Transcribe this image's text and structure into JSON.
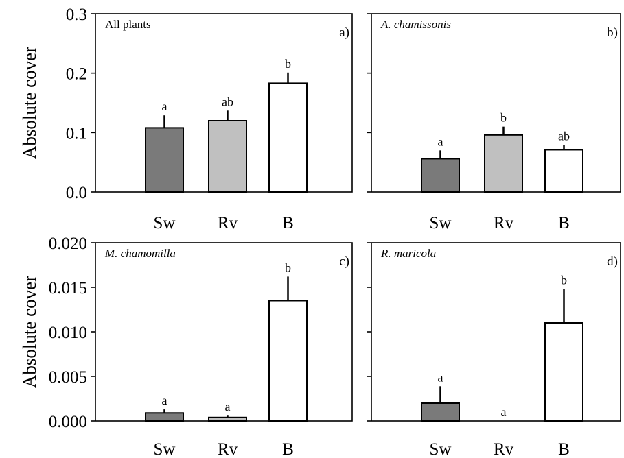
{
  "chart_data": [
    {
      "type": "bar",
      "panel": "a)",
      "title": "All plants",
      "title_italic": false,
      "ylabel": "Absolute cover",
      "categories": [
        "Sw",
        "Rv",
        "B"
      ],
      "values": [
        0.108,
        0.12,
        0.183
      ],
      "errors": [
        0.021,
        0.017,
        0.018
      ],
      "significance": [
        "a",
        "ab",
        "b"
      ],
      "bar_colors": [
        "#7a7a7a",
        "#c0c0c0",
        "#ffffff"
      ],
      "ylim": [
        0,
        0.3
      ],
      "yticks": [
        0,
        0.1,
        0.2,
        0.3
      ],
      "ytick_labels": [
        "0.0",
        "0.1",
        "0.2",
        "0.3"
      ]
    },
    {
      "type": "bar",
      "panel": "b)",
      "title": "A. chamissonis",
      "title_italic": true,
      "ylabel": "",
      "categories": [
        "Sw",
        "Rv",
        "B"
      ],
      "values": [
        0.056,
        0.096,
        0.071
      ],
      "errors": [
        0.014,
        0.014,
        0.008
      ],
      "significance": [
        "a",
        "b",
        "ab"
      ],
      "bar_colors": [
        "#7a7a7a",
        "#c0c0c0",
        "#ffffff"
      ],
      "ylim": [
        0,
        0.3
      ],
      "yticks": [
        0,
        0.1,
        0.2,
        0.3
      ],
      "ytick_labels": []
    },
    {
      "type": "bar",
      "panel": "c)",
      "title": "M. chamomilla",
      "title_italic": true,
      "ylabel": "Absolute cover",
      "categories": [
        "Sw",
        "Rv",
        "B"
      ],
      "values": [
        0.0009,
        0.0004,
        0.0135
      ],
      "errors": [
        0.0004,
        0.0002,
        0.0027
      ],
      "significance": [
        "a",
        "a",
        "b"
      ],
      "bar_colors": [
        "#7a7a7a",
        "#c0c0c0",
        "#ffffff"
      ],
      "ylim": [
        0,
        0.02
      ],
      "yticks": [
        0,
        0.005,
        0.01,
        0.015,
        0.02
      ],
      "ytick_labels": [
        "0.000",
        "0.005",
        "0.010",
        "0.015",
        "0.020"
      ]
    },
    {
      "type": "bar",
      "panel": "d)",
      "title": "R. maricola",
      "title_italic": true,
      "ylabel": "",
      "categories": [
        "Sw",
        "Rv",
        "B"
      ],
      "values": [
        0.002,
        0,
        0.011
      ],
      "errors": [
        0.0019,
        0,
        0.0038
      ],
      "significance": [
        "a",
        "a",
        "b"
      ],
      "bar_colors": [
        "#7a7a7a",
        "#c0c0c0",
        "#ffffff"
      ],
      "ylim": [
        0,
        0.02
      ],
      "yticks": [
        0,
        0.005,
        0.01,
        0.015,
        0.02
      ],
      "ytick_labels": []
    }
  ]
}
